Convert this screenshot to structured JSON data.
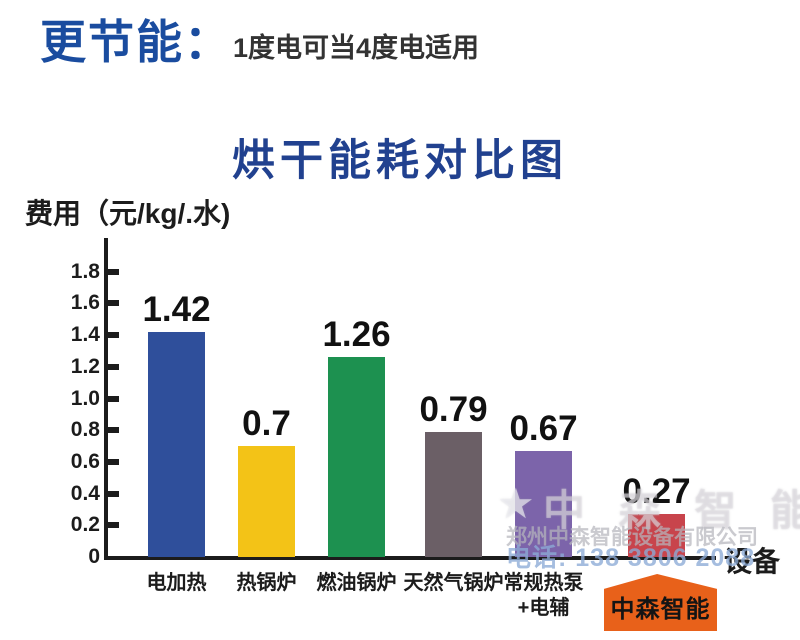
{
  "header": {
    "highlight": "更节能：",
    "subtitle": "1度电可当4度电适用"
  },
  "chart_data": {
    "type": "bar",
    "title": "烘干能耗对比图",
    "ylabel": "费用（元/kg/.水)",
    "xlabel": "设备",
    "ylim": [
      0,
      1.9
    ],
    "grid": false,
    "legend": "none",
    "yticks": [
      "1.8",
      "1.6",
      "1.4",
      "1.2",
      "1.0",
      "0.8",
      "0.6",
      "0.4",
      "0.2",
      "0"
    ],
    "categories": [
      "电加热",
      "热锅炉",
      "燃油锅炉",
      "天然气锅炉",
      "常规热泵+电辅",
      "中森智能"
    ],
    "values": [
      1.42,
      0.7,
      1.26,
      0.79,
      0.67,
      0.27
    ],
    "bars": [
      {
        "category": "电加热",
        "value": 1.42,
        "label": "1.42",
        "color": "#2f4f9b"
      },
      {
        "category": "热锅炉",
        "value": 0.7,
        "label": "0.7",
        "color": "#f3c317"
      },
      {
        "category": "燃油锅炉",
        "value": 1.26,
        "label": "1.26",
        "color": "#1d9150"
      },
      {
        "category": "天然气锅炉",
        "value": 0.79,
        "label": "0.79",
        "color": "#6b5f66"
      },
      {
        "category": "常规热泵",
        "category_line2": "+电辅",
        "value": 0.67,
        "label": "0.67",
        "color": "#7c64aa"
      },
      {
        "category": "中森智能",
        "value": 0.27,
        "label": "0.27",
        "color": "#c8444c",
        "highlight": true
      }
    ],
    "highlight_callout": {
      "label": "中森智能",
      "bg_color": "#e8611a",
      "text_color": "#141414"
    }
  },
  "watermark": {
    "star": "★",
    "brand": "中 森 智 能",
    "company": "郑州中森智能设备有限公司",
    "phone": "电话: 138 3806 2088"
  },
  "colors": {
    "header_blue": "#1a4c9f",
    "title_blue": "#21418f",
    "axis_black": "#1c1c1c",
    "callout_orange": "#e8611a"
  }
}
